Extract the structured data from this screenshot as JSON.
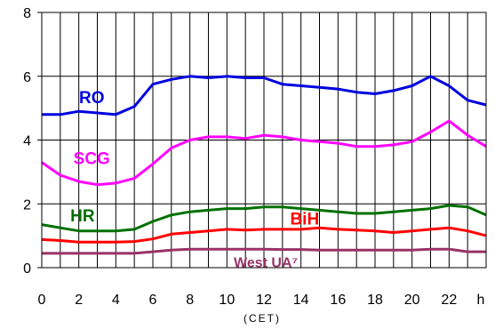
{
  "chart_data": {
    "type": "line",
    "title": "",
    "xlabel": "(CET)",
    "x_unit_label": "h",
    "ylabel": "",
    "xlim": [
      0,
      24
    ],
    "ylim": [
      0,
      8
    ],
    "grid": true,
    "x_tick_labels": [
      "0",
      "2",
      "4",
      "6",
      "8",
      "10",
      "12",
      "14",
      "16",
      "18",
      "20",
      "22"
    ],
    "y_tick_labels": [
      "0",
      "2",
      "4",
      "6",
      "8"
    ],
    "x": [
      0,
      1,
      2,
      3,
      4,
      5,
      6,
      7,
      8,
      9,
      10,
      11,
      12,
      13,
      14,
      15,
      16,
      17,
      18,
      19,
      20,
      21,
      22,
      23,
      24
    ],
    "series": [
      {
        "name": "RO",
        "color": "#0000e0",
        "label_color": "#0000e0",
        "values": [
          4.8,
          4.8,
          4.9,
          4.85,
          4.8,
          5.05,
          5.75,
          5.9,
          6.0,
          5.95,
          6.0,
          5.95,
          5.95,
          5.75,
          5.7,
          5.65,
          5.6,
          5.5,
          5.45,
          5.55,
          5.7,
          6.0,
          5.7,
          5.25,
          5.1
        ]
      },
      {
        "name": "SCG",
        "color": "#ff00ff",
        "label_color": "#ff00ff",
        "values": [
          3.3,
          2.9,
          2.7,
          2.6,
          2.65,
          2.8,
          3.25,
          3.75,
          4.0,
          4.1,
          4.1,
          4.05,
          4.15,
          4.1,
          4.0,
          3.95,
          3.9,
          3.8,
          3.8,
          3.85,
          3.95,
          4.25,
          4.6,
          4.15,
          3.8
        ]
      },
      {
        "name": "HR",
        "color": "#007000",
        "label_color": "#007000",
        "values": [
          1.35,
          1.25,
          1.15,
          1.15,
          1.15,
          1.2,
          1.45,
          1.65,
          1.75,
          1.8,
          1.85,
          1.85,
          1.9,
          1.9,
          1.85,
          1.8,
          1.75,
          1.7,
          1.7,
          1.75,
          1.8,
          1.85,
          1.95,
          1.9,
          1.65
        ]
      },
      {
        "name": "BiH",
        "color": "#ff0000",
        "label_color": "#ff0000",
        "values": [
          0.88,
          0.85,
          0.8,
          0.8,
          0.8,
          0.82,
          0.9,
          1.05,
          1.1,
          1.15,
          1.2,
          1.18,
          1.2,
          1.2,
          1.2,
          1.25,
          1.2,
          1.18,
          1.15,
          1.1,
          1.15,
          1.2,
          1.25,
          1.15,
          1.0
        ]
      },
      {
        "name": "West UA⁷",
        "color": "#993366",
        "label_color": "#993366",
        "values": [
          0.45,
          0.45,
          0.45,
          0.45,
          0.45,
          0.45,
          0.5,
          0.55,
          0.58,
          0.58,
          0.58,
          0.58,
          0.58,
          0.57,
          0.57,
          0.55,
          0.55,
          0.55,
          0.55,
          0.55,
          0.55,
          0.58,
          0.58,
          0.5,
          0.5
        ]
      }
    ],
    "series_label_positions": [
      {
        "name": "RO",
        "x": 2.7,
        "y": 5.15
      },
      {
        "name": "SCG",
        "x": 2.7,
        "y": 3.25
      },
      {
        "name": "HR",
        "x": 2.2,
        "y": 1.45
      },
      {
        "name": "BiH",
        "x": 14.2,
        "y": 1.35
      },
      {
        "name": "West UA⁷",
        "x": 12.1,
        "y": 0.02
      }
    ]
  }
}
